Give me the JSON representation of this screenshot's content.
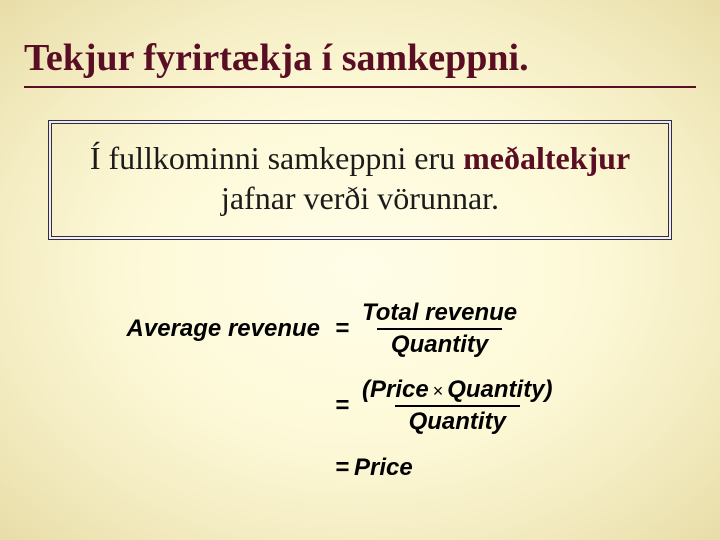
{
  "colors": {
    "title_color": "#5a0e24",
    "emphasis_color": "#5a0e24",
    "box_border_color": "#2a2a6a",
    "text_color": "#1b1b1b",
    "equation_color": "#000000",
    "bg_center": "#fffde8",
    "bg_edge": "#e8dda8"
  },
  "title": "Tekjur fyrirtækja í samkeppni.",
  "box": {
    "pre": "Í fullkominni samkeppni eru ",
    "emph": "meðaltekjur",
    "post": " jafnar verði vörunnar."
  },
  "equations": {
    "font_family": "Arial",
    "font_style": "italic",
    "font_weight": "bold",
    "font_size_pt": 18,
    "rows": [
      {
        "left": "Average revenue",
        "right_type": "fraction",
        "numerator": "Total revenue",
        "denominator": "Quantity"
      },
      {
        "left": "",
        "right_type": "fraction_product",
        "num_a": "(Price",
        "op": "×",
        "num_b": "Quantity)",
        "denominator": "Quantity"
      },
      {
        "left": "",
        "right_type": "plain",
        "value": "Price"
      }
    ]
  }
}
